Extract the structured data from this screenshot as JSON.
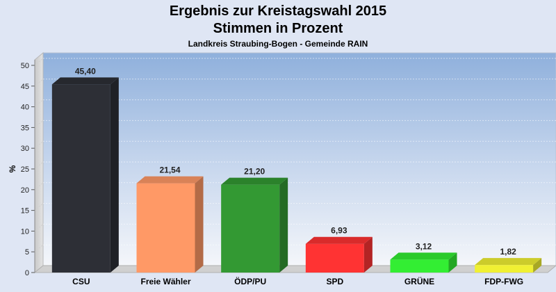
{
  "chart_data": {
    "type": "bar",
    "title": [
      "Ergebnis zur Kreistagswahl 2015",
      "Stimmen in Prozent"
    ],
    "subtitle": "Landkreis Straubing-Bogen - Gemeinde RAIN",
    "ylabel": "%",
    "ylim": [
      0,
      50
    ],
    "yticks": [
      0,
      5,
      10,
      15,
      20,
      25,
      30,
      35,
      40,
      45,
      50
    ],
    "categories": [
      "CSU",
      "Freie Wähler",
      "ÖDP/PU",
      "SPD",
      "GRÜNE",
      "FDP-FWG"
    ],
    "values": [
      45.4,
      21.54,
      21.2,
      6.93,
      3.12,
      1.82
    ],
    "value_labels": [
      "45,40",
      "21,54",
      "21,20",
      "6,93",
      "3,12",
      "1,82"
    ],
    "colors": [
      "#2d2f36",
      "#ff9966",
      "#339933",
      "#ff3333",
      "#33ee33",
      "#f0f033"
    ],
    "grid": true,
    "style": "3d"
  }
}
